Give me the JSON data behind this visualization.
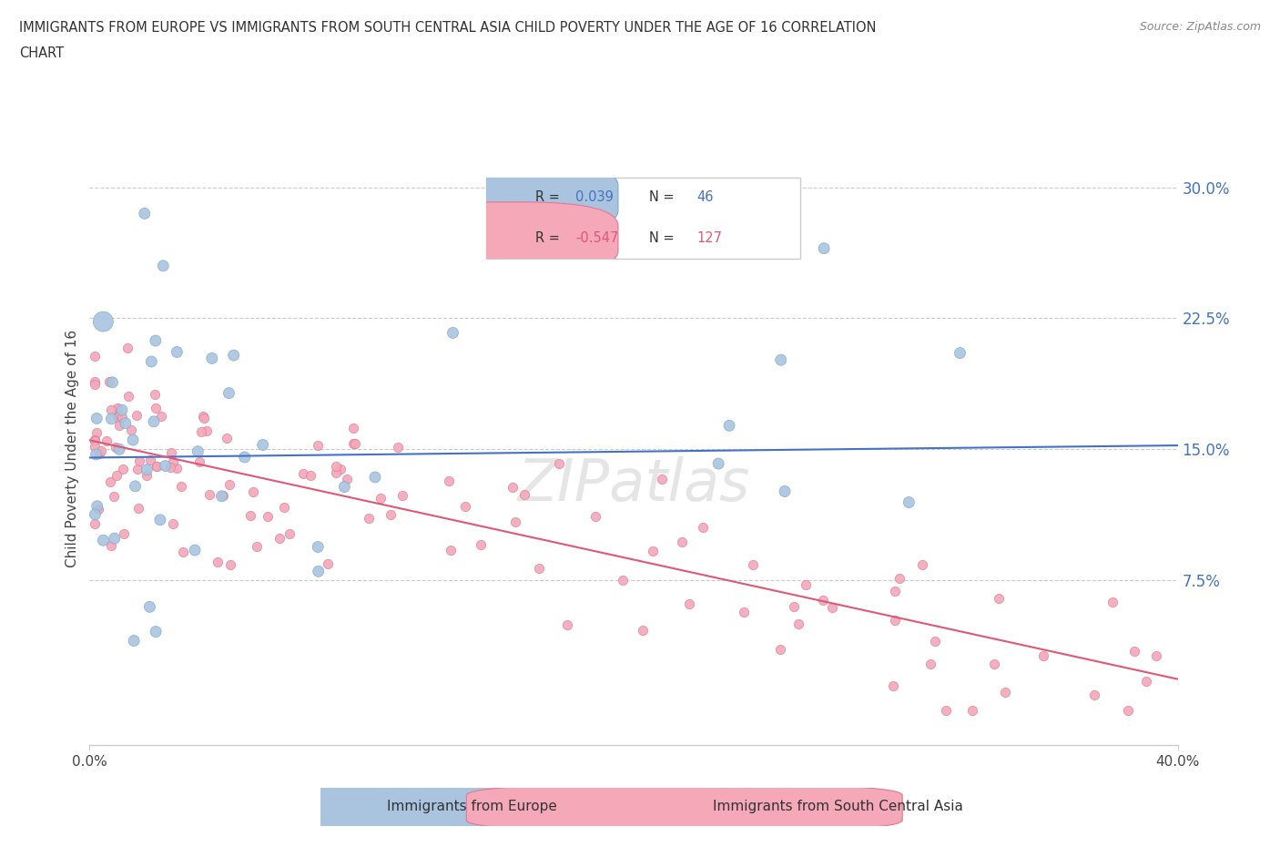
{
  "title_line1": "IMMIGRANTS FROM EUROPE VS IMMIGRANTS FROM SOUTH CENTRAL ASIA CHILD POVERTY UNDER THE AGE OF 16 CORRELATION",
  "title_line2": "CHART",
  "source_text": "Source: ZipAtlas.com",
  "ylabel": "Child Poverty Under the Age of 16",
  "xlim": [
    0.0,
    0.4
  ],
  "ylim": [
    -0.02,
    0.32
  ],
  "yticks": [
    0.075,
    0.15,
    0.225,
    0.3
  ],
  "ytick_labels": [
    "7.5%",
    "15.0%",
    "22.5%",
    "30.0%"
  ],
  "xtick_labels": [
    "0.0%",
    "40.0%"
  ],
  "europe_color": "#aac4e0",
  "europe_edge": "#7baac8",
  "sca_color": "#f4a8b8",
  "sca_edge": "#e07898",
  "europe_line_color": "#4472c4",
  "sca_line_color": "#e05878",
  "europe_R": 0.039,
  "europe_N": 46,
  "sca_R": -0.547,
  "sca_N": 127,
  "watermark": "ZIPatlas",
  "europe_line_x": [
    0.0,
    0.4
  ],
  "europe_line_y": [
    0.145,
    0.152
  ],
  "sca_line_x": [
    0.0,
    0.4
  ],
  "sca_line_y": [
    0.155,
    0.018
  ]
}
